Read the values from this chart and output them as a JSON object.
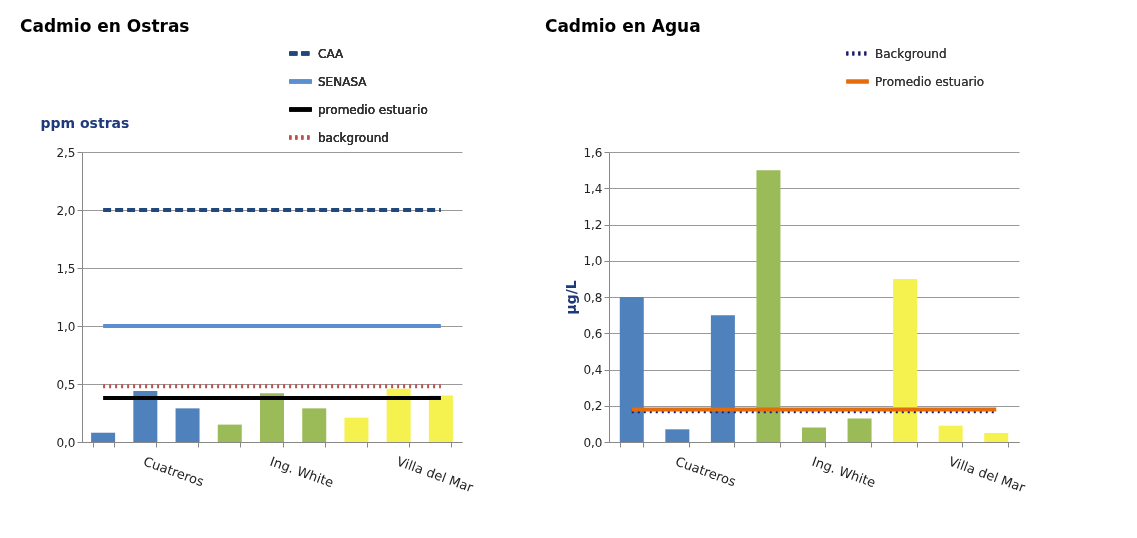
{
  "chart_data": [
    {
      "type": "bar",
      "title": "Cadmio en Ostras",
      "ylabel": "ppm ostras",
      "categories": [
        null,
        "Cuatreros",
        null,
        null,
        "Ing. White",
        null,
        null,
        "Villa del Mar",
        null
      ],
      "series": [
        {
          "type": "bar",
          "colors": [
            "#4f81bd",
            "#4f81bd",
            "#4f81bd",
            "#9bbb59",
            "#9bbb59",
            "#9bbb59",
            "#f5f24f",
            "#f5f24f",
            "#f5f24f"
          ],
          "values": [
            0.08,
            0.44,
            0.29,
            0.15,
            0.42,
            0.29,
            0.21,
            0.46,
            0.4
          ]
        },
        {
          "type": "line",
          "name": "CAA",
          "color": "#1f497d",
          "line_style": "dashed",
          "values": [
            2.0,
            2.0,
            2.0,
            2.0,
            2.0,
            2.0,
            2.0,
            2.0,
            2.0
          ]
        },
        {
          "type": "line",
          "name": "SENASA",
          "color": "#5b8fd0",
          "line_style": "solid",
          "values": [
            1.0,
            1.0,
            1.0,
            1.0,
            1.0,
            1.0,
            1.0,
            1.0,
            1.0
          ]
        },
        {
          "type": "line",
          "name": "promedio estuario",
          "color": "#000000",
          "line_style": "solid",
          "values": [
            0.38,
            0.38,
            0.38,
            0.38,
            0.38,
            0.38,
            0.38,
            0.38,
            0.38
          ]
        },
        {
          "type": "line",
          "name": "background",
          "color": "#c0504d",
          "line_style": "dotted",
          "values": [
            0.48,
            0.48,
            0.48,
            0.48,
            0.48,
            0.48,
            0.48,
            0.48,
            0.48
          ]
        }
      ],
      "ylim": [
        0,
        2.5
      ],
      "yticks": [
        {
          "value": 0,
          "label": "0,0"
        },
        {
          "value": 0.5,
          "label": "0,5"
        },
        {
          "value": 1,
          "label": "1,0"
        },
        {
          "value": 1.5,
          "label": "1,5"
        },
        {
          "value": 2,
          "label": "2,0"
        },
        {
          "value": 2.5,
          "label": "2,5"
        }
      ],
      "grid": "y",
      "legend": "top right",
      "marker": "none"
    },
    {
      "type": "bar",
      "title": "Cadmio en Agua",
      "ylabel": "µg/L",
      "categories": [
        null,
        "Cuatreros",
        null,
        null,
        "Ing. White",
        null,
        null,
        "Villa del Mar",
        null
      ],
      "series": [
        {
          "type": "bar",
          "colors": [
            "#4f81bd",
            "#4f81bd",
            "#4f81bd",
            "#9bbb59",
            "#9bbb59",
            "#9bbb59",
            "#f5f24f",
            "#f5f24f",
            "#f5f24f"
          ],
          "values": [
            0.8,
            0.07,
            0.7,
            1.5,
            0.08,
            0.13,
            0.9,
            0.09,
            0.05
          ]
        },
        {
          "type": "line",
          "name": "Background",
          "color": "#1a1a6e",
          "line_style": "dotted",
          "values": [
            0.17,
            0.17,
            0.17,
            0.17,
            0.17,
            0.17,
            0.17,
            0.17,
            0.17
          ]
        },
        {
          "type": "line",
          "name": "Promedio estuario",
          "color": "#e46c0a",
          "line_style": "solid",
          "values": [
            0.18,
            0.18,
            0.18,
            0.18,
            0.18,
            0.18,
            0.18,
            0.18,
            0.18
          ]
        }
      ],
      "ylim": [
        0,
        1.6
      ],
      "yticks": [
        {
          "value": 0,
          "label": "0,0"
        },
        {
          "value": 0.2,
          "label": "0,2"
        },
        {
          "value": 0.4,
          "label": "0,4"
        },
        {
          "value": 0.6,
          "label": "0,6"
        },
        {
          "value": 0.8,
          "label": "0,8"
        },
        {
          "value": 1,
          "label": "1,0"
        },
        {
          "value": 1.2,
          "label": "1,2"
        },
        {
          "value": 1.4,
          "label": "1,4"
        },
        {
          "value": 1.6,
          "label": "1,6"
        }
      ],
      "grid": "y",
      "legend": "top right",
      "marker": "none"
    }
  ]
}
